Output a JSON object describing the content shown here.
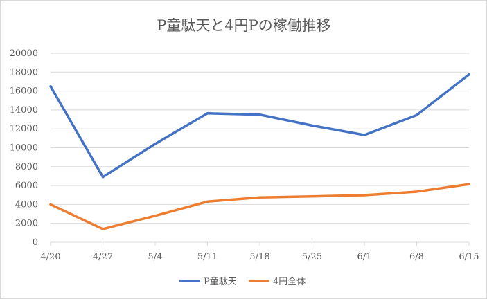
{
  "chart_data": {
    "type": "line",
    "title": "P童駄天と4円Pの稼働推移",
    "xlabel": "",
    "ylabel": "",
    "categories": [
      "4/20",
      "4/27",
      "5/4",
      "5/11",
      "5/18",
      "5/25",
      "6/1",
      "6/8",
      "6/15"
    ],
    "ylim": [
      0,
      20000
    ],
    "yticks": [
      0,
      2000,
      4000,
      6000,
      8000,
      10000,
      12000,
      14000,
      16000,
      18000,
      20000
    ],
    "grid": true,
    "legend": "bottom",
    "series": [
      {
        "name": "P童駄天",
        "color": "#4472c4",
        "values": [
          16500,
          6900,
          10400,
          13650,
          13500,
          12350,
          11350,
          13450,
          17750
        ]
      },
      {
        "name": "4円全体",
        "color": "#ed7d31",
        "values": [
          4000,
          1400,
          2800,
          4300,
          4750,
          4850,
          4980,
          5350,
          6150
        ]
      }
    ]
  }
}
